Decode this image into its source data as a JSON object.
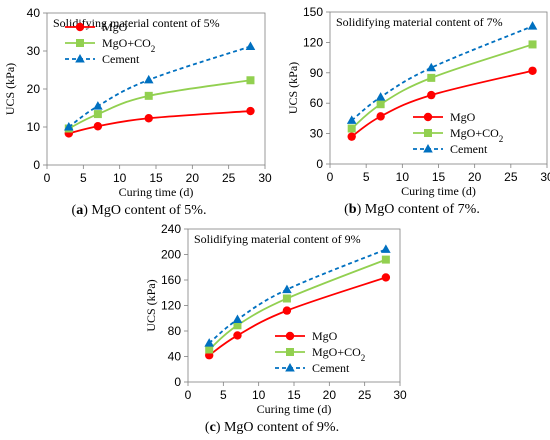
{
  "chart_data": [
    {
      "type": "line",
      "panel_label": "(a)",
      "caption": "MgO content of 5%.",
      "annotation": "Solidifying material content of 5%",
      "xlabel": "Curing time (d)",
      "ylabel": "UCS (kPa)",
      "xlim": [
        0,
        30
      ],
      "ylim": [
        0,
        40
      ],
      "xticks": [
        "0",
        "5",
        "10",
        "15",
        "20",
        "25",
        "30"
      ],
      "yticks": [
        "0",
        "10",
        "20",
        "30",
        "40"
      ],
      "legend_position": "top-left",
      "x": [
        3,
        7,
        14,
        28
      ],
      "series": [
        {
          "name": "MgO",
          "values": [
            8.3,
            10.2,
            12.3,
            14.2
          ]
        },
        {
          "name": "MgO+CO",
          "name_subscript": "2",
          "values": [
            9.6,
            13.4,
            18.2,
            22.3
          ]
        },
        {
          "name": "Cement",
          "values": [
            10.0,
            15.5,
            22.4,
            31.2
          ]
        }
      ]
    },
    {
      "type": "line",
      "panel_label": "(b)",
      "caption": "MgO content of 7%.",
      "annotation": "Solidifying material content of 7%",
      "xlabel": "Curing time (d)",
      "ylabel": "UCS (kPa)",
      "xlim": [
        0,
        30
      ],
      "ylim": [
        0,
        150
      ],
      "xticks": [
        "0",
        "5",
        "10",
        "15",
        "20",
        "25",
        "30"
      ],
      "yticks": [
        "0",
        "30",
        "60",
        "90",
        "120",
        "150"
      ],
      "legend_position": "bottom-right",
      "x": [
        3,
        7,
        14,
        28
      ],
      "series": [
        {
          "name": "MgO",
          "values": [
            27,
            47,
            68,
            92
          ]
        },
        {
          "name": "MgO+CO",
          "name_subscript": "2",
          "values": [
            35,
            59,
            85,
            118
          ]
        },
        {
          "name": "Cement",
          "values": [
            43,
            66,
            95,
            136
          ]
        }
      ]
    },
    {
      "type": "line",
      "panel_label": "(c)",
      "caption": "MgO content of 9%.",
      "annotation": "Solidifying material content of 9%",
      "xlabel": "Curing time (d)",
      "ylabel": "UCS (kPa)",
      "xlim": [
        0,
        30
      ],
      "ylim": [
        0,
        240
      ],
      "xticks": [
        "0",
        "5",
        "10",
        "15",
        "20",
        "25",
        "30"
      ],
      "yticks": [
        "0",
        "40",
        "80",
        "120",
        "160",
        "200",
        "240"
      ],
      "legend_position": "bottom-right",
      "x": [
        3,
        7,
        14,
        28
      ],
      "series": [
        {
          "name": "MgO",
          "values": [
            42,
            73,
            112,
            164
          ]
        },
        {
          "name": "MgO+CO",
          "name_subscript": "2",
          "values": [
            51,
            89,
            131,
            192
          ]
        },
        {
          "name": "Cement",
          "values": [
            61,
            98,
            145,
            208
          ]
        }
      ]
    }
  ],
  "series_styles": [
    {
      "color": "#ff0000",
      "marker": "circle",
      "dash": "none"
    },
    {
      "color": "#92d050",
      "marker": "square",
      "dash": "none"
    },
    {
      "color": "#0070c0",
      "marker": "triangle",
      "dash": "dashed"
    }
  ]
}
